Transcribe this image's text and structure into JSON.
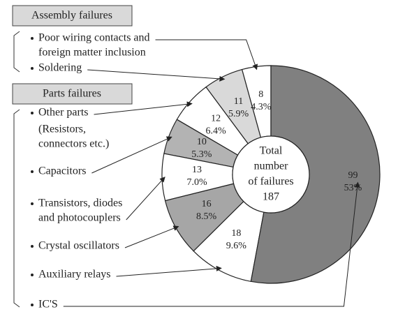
{
  "chart_data": {
    "type": "donut",
    "groups": [
      {
        "title": "Assembly failures",
        "categories": [
          [
            "Poor wiring contacts and",
            "foreign matter inclusion"
          ],
          [
            "Soldering"
          ]
        ],
        "values": [
          8,
          11
        ],
        "percents": [
          4.3,
          5.9
        ],
        "percent_labels": [
          "4.3%",
          "5.9%"
        ],
        "colors": [
          "#ffffff",
          "#d9d9d9"
        ]
      },
      {
        "title": "Parts failures",
        "categories": [
          [
            "Other parts",
            "(Resistors,",
            "connectors etc.)"
          ],
          [
            "Capacitors"
          ],
          [
            "Transistors, diodes",
            "and photocouplers"
          ],
          [
            "Crystal oscillators"
          ],
          [
            "Auxiliary relays"
          ],
          [
            "IC'S"
          ]
        ],
        "values": [
          12,
          10,
          13,
          16,
          18,
          99
        ],
        "percents": [
          6.4,
          5.3,
          7.0,
          8.5,
          9.6,
          53
        ],
        "percent_labels": [
          "6.4%",
          "5.3%",
          "7.0%",
          "8.5%",
          "9.6%",
          "53%"
        ],
        "colors": [
          "#ffffff",
          "#b3b3b3",
          "#ffffff",
          "#a6a6a6",
          "#ffffff",
          "#808080"
        ]
      }
    ],
    "center_label": [
      "Total",
      "number",
      "of failures"
    ],
    "total": 187
  }
}
